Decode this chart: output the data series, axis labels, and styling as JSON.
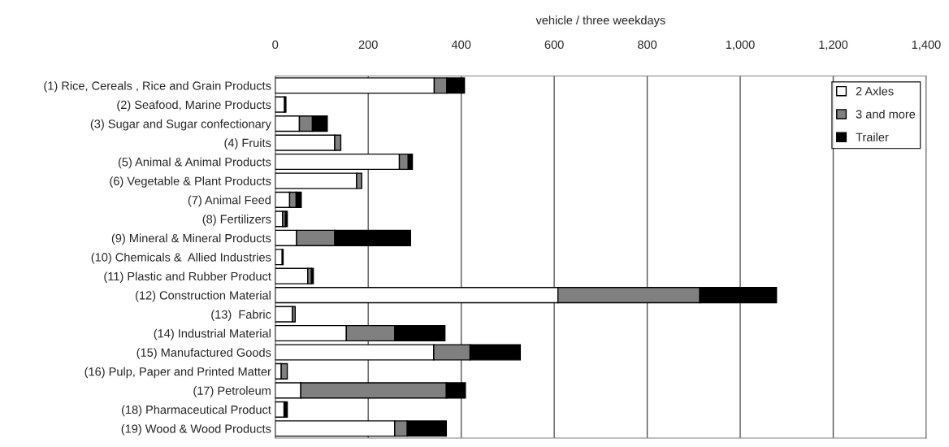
{
  "chart_data": {
    "type": "bar",
    "orientation": "horizontal",
    "stacked": true,
    "xlabel": "vehicle / three weekdays",
    "categories": [
      "(1) Rice, Cereals , Rice and Grain Products",
      "(2) Seafood, Marine Products",
      "(3) Sugar and Sugar confectionary",
      "(4) Fruits",
      "(5) Animal & Animal Products",
      "(6) Vegetable & Plant Products",
      "(7) Animal Feed",
      "(8) Fertilizers",
      "(9) Mineral & Mineral Products",
      "(10) Chemicals &  Allied Industries",
      "(11) Plastic and Rubber Product",
      "(12) Construction Material",
      "(13)  Fabric",
      "(14) Industrial Material",
      "(15) Manufactured Goods",
      "(16) Pulp, Paper and Printed Matter",
      "(17) Petroleum",
      "(18) Pharmaceutical Product",
      "(19) Wood & Wood Products"
    ],
    "series": [
      {
        "name": "2 Axles",
        "color": "#ffffff",
        "values": [
          342,
          20,
          52,
          128,
          267,
          175,
          31,
          16,
          46,
          15,
          70,
          608,
          37,
          153,
          341,
          13,
          55,
          19,
          257
        ]
      },
      {
        "name": "3 and more",
        "color": "#808080",
        "values": [
          27,
          0,
          28,
          13,
          19,
          11,
          14,
          6,
          82,
          0,
          8,
          305,
          6,
          104,
          78,
          13,
          313,
          0,
          27
        ]
      },
      {
        "name": "Trailer",
        "color": "#000000",
        "values": [
          38,
          3,
          32,
          0,
          9,
          0,
          11,
          4,
          163,
          2,
          4,
          165,
          0,
          108,
          108,
          0,
          41,
          7,
          84
        ]
      }
    ],
    "xlim": [
      0,
      1400
    ],
    "xticks": [
      0,
      200,
      400,
      {
        "value": 600,
        "label": "600"
      },
      800,
      {
        "value": 1000,
        "label": "1,000"
      },
      {
        "value": 1200,
        "label": "1,200"
      },
      {
        "value": 1400,
        "label": "1,400"
      }
    ],
    "grid": "x",
    "legend": "top right"
  }
}
